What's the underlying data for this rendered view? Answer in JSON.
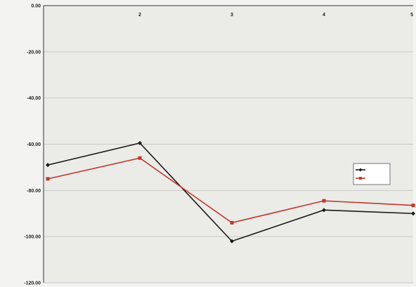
{
  "chart_data": {
    "type": "line",
    "x": [
      1,
      2,
      3,
      4,
      5
    ],
    "x_tick_labels": [
      "",
      "2",
      "3",
      "4",
      "5"
    ],
    "categories": [
      "",
      "",
      "",
      "",
      ""
    ],
    "ylabel": "",
    "ylim": [
      -120,
      0
    ],
    "y_ticks": [
      "0.00",
      "-20.00",
      "-40.00",
      "-60.00",
      "-80.00",
      "-100.00",
      "-120.00"
    ],
    "grid": true,
    "legend_position": "right",
    "series": [
      {
        "name": "",
        "color": "#1a1a1a",
        "marker": "diamond",
        "values": [
          -69,
          -59.5,
          -102,
          -88.5,
          -90
        ]
      },
      {
        "name": "",
        "color": "#c0392b",
        "marker": "square",
        "values": [
          -75,
          -66,
          -94,
          -84.5,
          -86.5
        ]
      }
    ]
  }
}
